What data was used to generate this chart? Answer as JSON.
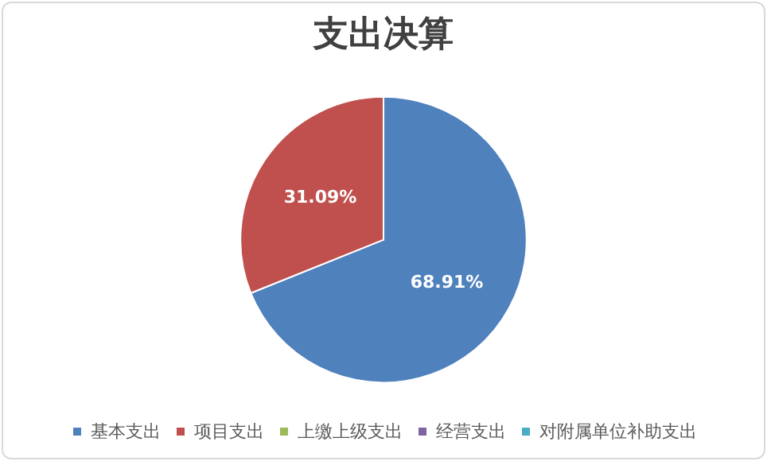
{
  "chart_data": {
    "type": "pie",
    "title": "支出决算",
    "categories": [
      "基本支出",
      "项目支出",
      "上缴上级支出",
      "经营支出",
      "对附属单位补助支出"
    ],
    "values": [
      68.91,
      31.09,
      0,
      0,
      0
    ],
    "colors": [
      "#4f81bd",
      "#c0504d",
      "#9bbb59",
      "#8064a2",
      "#4bacc6"
    ],
    "value_labels": [
      "68.91%",
      "31.09%",
      null,
      null,
      null
    ],
    "legend": "bottom"
  }
}
